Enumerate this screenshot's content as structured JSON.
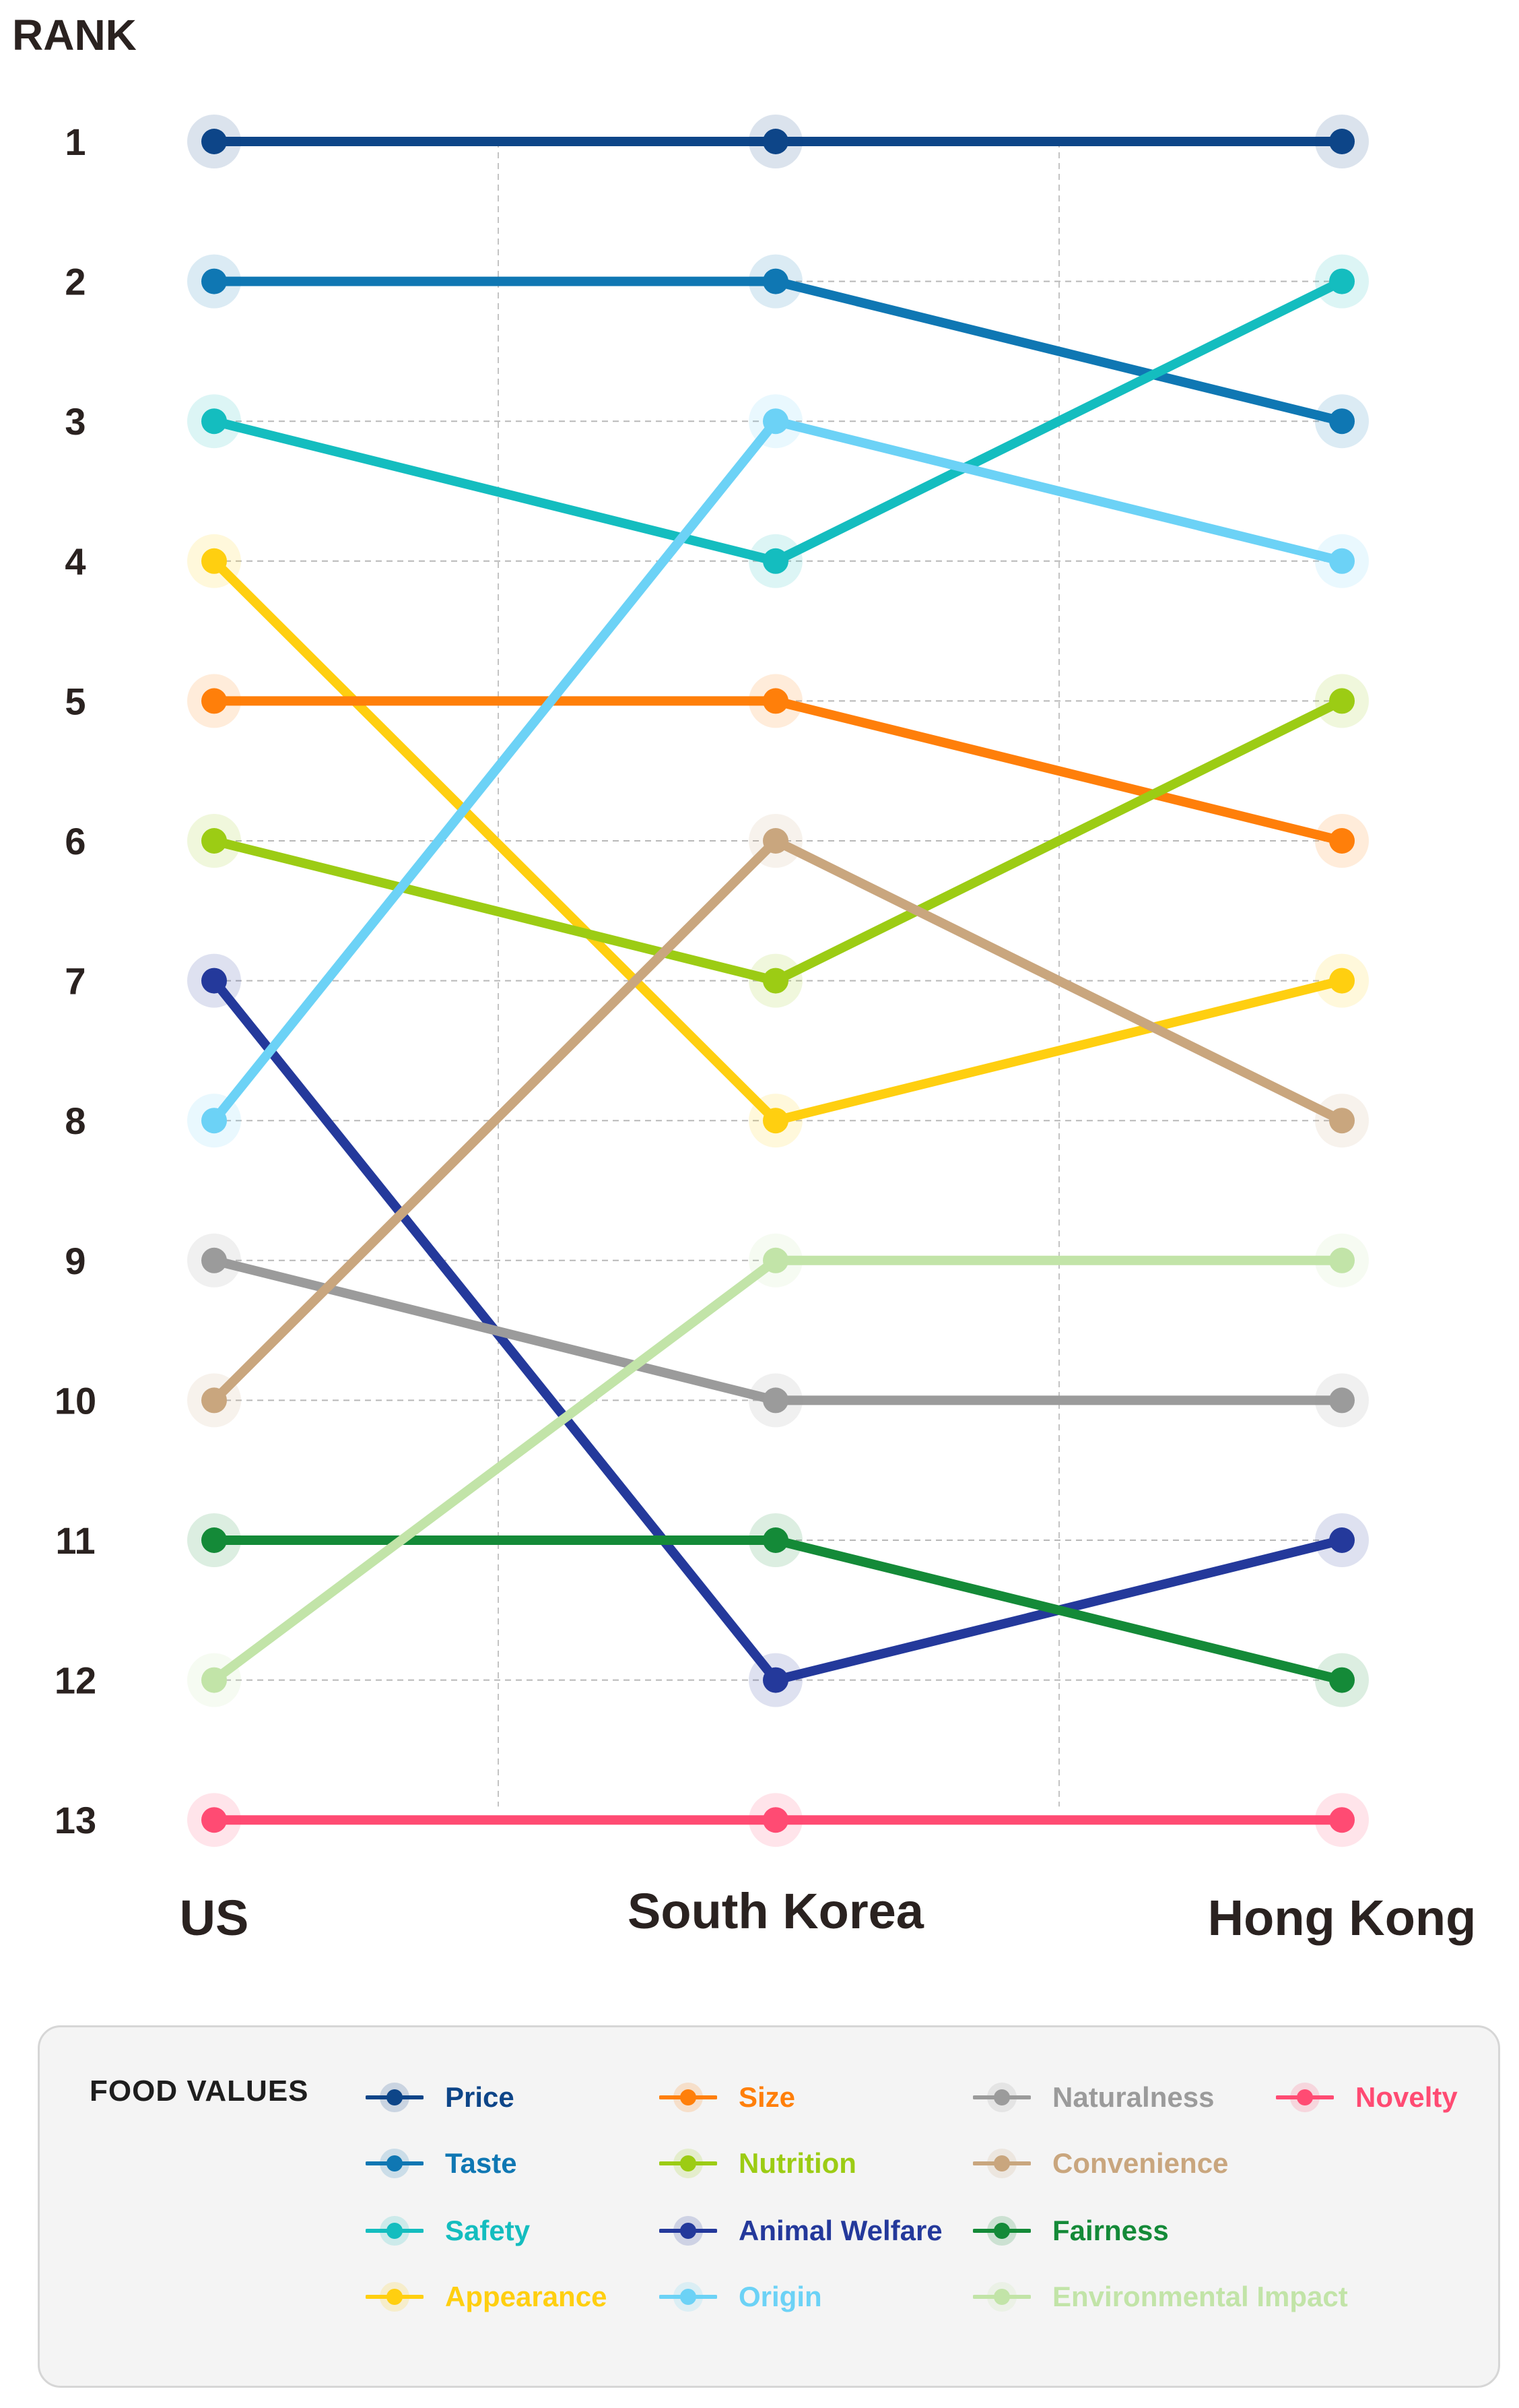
{
  "chart_data": {
    "type": "line",
    "y_axis_title": "RANK",
    "y_ticks": [
      "1",
      "2",
      "3",
      "4",
      "5",
      "6",
      "7",
      "8",
      "9",
      "10",
      "11",
      "12",
      "13"
    ],
    "ylim": [
      1,
      13
    ],
    "y_inverted": true,
    "x": [
      "US",
      "South Korea",
      "Hong Kong"
    ],
    "grid": true,
    "legend_title": "FOOD VALUES",
    "legend_position": "bottom",
    "series": [
      {
        "name": "Price",
        "color": "#0d4588",
        "values": [
          1,
          1,
          1
        ]
      },
      {
        "name": "Taste",
        "color": "#0f77b3",
        "values": [
          2,
          2,
          3
        ]
      },
      {
        "name": "Safety",
        "color": "#14bdbf",
        "values": [
          3,
          4,
          2
        ]
      },
      {
        "name": "Appearance",
        "color": "#ffcf10",
        "values": [
          4,
          8,
          7
        ]
      },
      {
        "name": "Size",
        "color": "#ff7f0a",
        "values": [
          5,
          5,
          6
        ]
      },
      {
        "name": "Nutrition",
        "color": "#9ccc14",
        "values": [
          6,
          7,
          5
        ]
      },
      {
        "name": "Animal Welfare",
        "color": "#24399b",
        "values": [
          7,
          12,
          11
        ]
      },
      {
        "name": "Origin",
        "color": "#6cd2f6",
        "values": [
          8,
          3,
          4
        ]
      },
      {
        "name": "Naturalness",
        "color": "#9b9b9b",
        "values": [
          9,
          10,
          10
        ]
      },
      {
        "name": "Convenience",
        "color": "#c9a67e",
        "values": [
          10,
          6,
          8
        ]
      },
      {
        "name": "Fairness",
        "color": "#148a38",
        "values": [
          11,
          11,
          12
        ]
      },
      {
        "name": "Environmental Impact",
        "color": "#c2e4a8",
        "values": [
          12,
          9,
          9
        ]
      },
      {
        "name": "Novelty",
        "color": "#ff4b73",
        "values": [
          13,
          13,
          13
        ]
      }
    ]
  }
}
